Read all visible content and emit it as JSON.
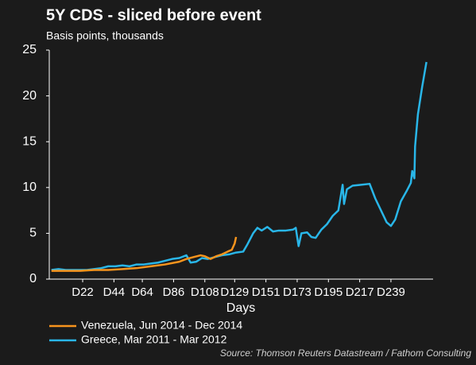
{
  "chart_data": {
    "type": "line",
    "title": "5Y CDS - sliced before event",
    "subtitle": "Basis points, thousands",
    "x_label": "Days",
    "source": "Source: Thomson Reuters Datastream / Fathom Consulting",
    "legend": "bottom",
    "grid": false,
    "xlim": [
      0,
      267
    ],
    "xticks": [
      {
        "value": 22,
        "label": "D22"
      },
      {
        "value": 44,
        "label": "D44"
      },
      {
        "value": 64,
        "label": "D64"
      },
      {
        "value": 86,
        "label": "D86"
      },
      {
        "value": 108,
        "label": "D108"
      },
      {
        "value": 129,
        "label": "D129"
      },
      {
        "value": 151,
        "label": "D151"
      },
      {
        "value": 173,
        "label": "D173"
      },
      {
        "value": 195,
        "label": "D195"
      },
      {
        "value": 217,
        "label": "D217"
      },
      {
        "value": 239,
        "label": "D239"
      }
    ],
    "ylim": [
      0,
      25
    ],
    "yticks": [
      0,
      5,
      10,
      15,
      20,
      25
    ],
    "series": [
      {
        "name": "Venezuela, Jun 2014 - Dec 2014",
        "color": "#f7941d",
        "x": [
          0,
          10,
          20,
          30,
          40,
          50,
          60,
          70,
          80,
          90,
          95,
          100,
          105,
          108,
          112,
          116,
          120,
          124,
          127,
          129,
          130
        ],
        "values": [
          0.9,
          0.9,
          0.9,
          1.0,
          1.0,
          1.1,
          1.2,
          1.4,
          1.6,
          1.9,
          2.2,
          2.4,
          2.6,
          2.5,
          2.2,
          2.5,
          2.7,
          3.0,
          3.2,
          3.9,
          4.6
        ]
      },
      {
        "name": "Greece, Mar 2011 - Mar 2012",
        "color": "#29b6e8",
        "x": [
          0,
          5,
          10,
          15,
          20,
          25,
          30,
          35,
          40,
          45,
          50,
          55,
          60,
          65,
          70,
          75,
          80,
          85,
          90,
          95,
          98,
          102,
          106,
          110,
          115,
          120,
          125,
          130,
          135,
          138,
          142,
          145,
          148,
          152,
          156,
          160,
          165,
          170,
          172,
          174,
          176,
          180,
          183,
          186,
          190,
          194,
          198,
          202,
          205,
          206,
          208,
          212,
          218,
          224,
          228,
          232,
          236,
          239,
          242,
          246,
          250,
          253,
          254,
          255.5,
          256,
          258,
          261,
          264
        ],
        "values": [
          1.0,
          1.1,
          1.0,
          1.0,
          1.0,
          1.0,
          1.1,
          1.2,
          1.4,
          1.4,
          1.5,
          1.4,
          1.6,
          1.6,
          1.7,
          1.8,
          2.0,
          2.2,
          2.3,
          2.6,
          1.8,
          1.9,
          2.3,
          2.2,
          2.4,
          2.6,
          2.7,
          2.9,
          3.0,
          3.8,
          5.0,
          5.6,
          5.3,
          5.7,
          5.2,
          5.3,
          5.3,
          5.4,
          5.6,
          3.6,
          5.0,
          5.1,
          4.6,
          4.5,
          5.4,
          6.0,
          6.9,
          7.5,
          10.3,
          8.2,
          9.8,
          10.2,
          10.3,
          10.4,
          8.8,
          7.5,
          6.2,
          5.8,
          6.5,
          8.5,
          9.6,
          10.5,
          11.8,
          11.0,
          14.5,
          18.0,
          21.0,
          23.7
        ]
      }
    ]
  }
}
